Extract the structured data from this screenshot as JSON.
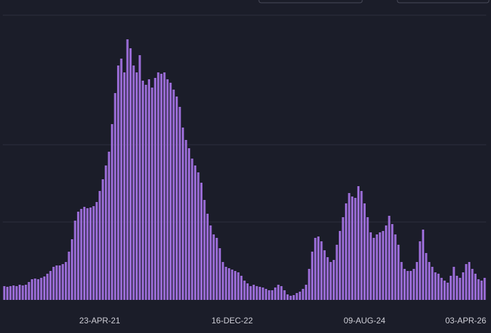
{
  "chart_data": {
    "type": "bar",
    "categories": [
      null,
      null,
      null,
      null,
      null,
      null,
      null,
      null,
      null,
      null,
      null,
      null,
      null,
      null,
      null,
      null,
      null,
      null,
      null,
      null,
      null,
      null,
      null,
      null,
      null,
      null,
      null,
      null,
      null,
      null,
      null,
      "23-APR-21",
      null,
      null,
      null,
      null,
      null,
      null,
      null,
      null,
      null,
      null,
      null,
      null,
      null,
      null,
      null,
      null,
      null,
      null,
      null,
      null,
      null,
      null,
      null,
      null,
      null,
      null,
      null,
      null,
      null,
      null,
      null,
      null,
      null,
      null,
      null,
      null,
      null,
      null,
      null,
      null,
      null,
      null,
      "16-DEC-22",
      null,
      null,
      null,
      null,
      null,
      null,
      null,
      null,
      null,
      null,
      null,
      null,
      null,
      null,
      null,
      null,
      null,
      null,
      null,
      null,
      null,
      null,
      null,
      null,
      null,
      null,
      null,
      null,
      null,
      null,
      null,
      null,
      null,
      null,
      null,
      null,
      null,
      null,
      null,
      null,
      null,
      null,
      "09-AUG-24",
      null,
      null,
      null,
      null,
      null,
      null,
      null,
      null,
      null,
      null,
      null,
      null,
      null,
      null,
      null,
      null,
      null,
      null,
      null,
      null,
      null,
      null,
      null,
      null,
      null,
      null,
      null,
      null,
      null,
      null,
      null,
      null,
      null,
      null,
      null,
      null,
      null,
      null,
      "03-APR-26"
    ],
    "values": [
      20,
      19,
      20,
      21,
      20,
      22,
      21,
      22,
      26,
      30,
      31,
      30,
      32,
      34,
      38,
      42,
      48,
      50,
      50,
      52,
      55,
      70,
      88,
      115,
      128,
      132,
      135,
      133,
      134,
      136,
      142,
      158,
      175,
      195,
      215,
      255,
      300,
      340,
      350,
      330,
      378,
      365,
      340,
      330,
      355,
      318,
      312,
      320,
      308,
      322,
      330,
      328,
      330,
      320,
      315,
      305,
      295,
      280,
      250,
      232,
      220,
      205,
      195,
      185,
      170,
      145,
      125,
      108,
      95,
      90,
      75,
      55,
      48,
      46,
      44,
      42,
      40,
      35,
      28,
      24,
      20,
      22,
      20,
      19,
      18,
      16,
      14,
      14,
      18,
      22,
      20,
      14,
      8,
      6,
      7,
      10,
      12,
      16,
      22,
      45,
      70,
      90,
      92,
      85,
      72,
      62,
      55,
      58,
      80,
      100,
      120,
      140,
      155,
      150,
      148,
      165,
      158,
      140,
      120,
      98,
      90,
      95,
      98,
      100,
      108,
      122,
      110,
      95,
      80,
      55,
      45,
      42,
      42,
      45,
      55,
      85,
      102,
      68,
      55,
      48,
      40,
      38,
      32,
      28,
      25,
      35,
      48,
      35,
      32,
      40,
      52,
      55,
      45,
      38,
      30,
      28,
      32
    ],
    "color": "#9a6cd6",
    "ylim": [
      0,
      413
    ],
    "yticks": [
      113,
      225
    ],
    "grid": true
  }
}
